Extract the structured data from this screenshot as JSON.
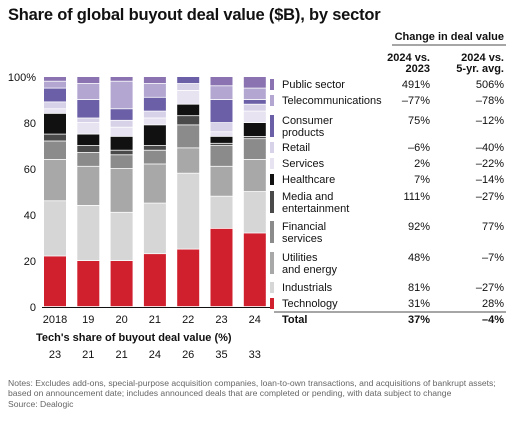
{
  "title": "Share of global buyout deal value ($B), by sector",
  "colors": {
    "Public sector": "#8a73b0",
    "Telecommunications": "#b3a7d2",
    "Consumer products": "#6b60a8",
    "Retail": "#d8d2e8",
    "Services": "#e7e3f0",
    "Healthcare": "#111111",
    "Media and entertainment": "#4a4a4a",
    "Financial services": "#8b8b8b",
    "Utilities and energy": "#a8a8a8",
    "Industrials": "#d6d6d6",
    "Technology": "#d0202e"
  },
  "chart_data": {
    "type": "bar",
    "stacked": true,
    "title": "Share of global buyout deal value ($B), by sector",
    "categories": [
      "2018",
      "19",
      "20",
      "21",
      "22",
      "23",
      "24"
    ],
    "ylim": [
      0,
      100
    ],
    "yticks": [
      "0",
      "20",
      "40",
      "60",
      "80",
      "100%"
    ],
    "grid": false,
    "series": [
      {
        "name": "Technology",
        "values": [
          22,
          20,
          20,
          23,
          25,
          34,
          32
        ]
      },
      {
        "name": "Industrials",
        "values": [
          24,
          24,
          21,
          22,
          33,
          14,
          18
        ]
      },
      {
        "name": "Utilities and energy",
        "values": [
          18,
          17,
          19,
          17,
          11,
          13,
          14
        ]
      },
      {
        "name": "Financial services",
        "values": [
          8,
          6,
          6,
          6,
          10,
          9,
          9
        ]
      },
      {
        "name": "Media and entertainment",
        "values": [
          3,
          3,
          2,
          2,
          4,
          1,
          1
        ]
      },
      {
        "name": "Healthcare",
        "values": [
          9,
          5,
          6,
          9,
          5,
          3,
          6
        ]
      },
      {
        "name": "Services",
        "values": [
          2,
          5,
          4,
          3,
          6,
          2,
          5
        ]
      },
      {
        "name": "Retail",
        "values": [
          3,
          2,
          3,
          3,
          3,
          4,
          3
        ]
      },
      {
        "name": "Consumer products",
        "values": [
          6,
          8,
          5,
          6,
          3,
          10,
          2
        ]
      },
      {
        "name": "Telecommunications",
        "values": [
          3,
          7,
          12,
          6,
          0,
          6,
          5
        ]
      },
      {
        "name": "Public sector",
        "values": [
          2,
          3,
          2,
          3,
          0,
          4,
          5
        ]
      }
    ]
  },
  "legend": {
    "header": "Change in deal value",
    "col1_header": [
      "2024 vs.",
      "2023"
    ],
    "col2_header": [
      "2024 vs.",
      "5-yr. avg."
    ],
    "rows": [
      {
        "label": [
          "Public sector"
        ],
        "v1": "491%",
        "v2": "506%",
        "key": "Public sector"
      },
      {
        "label": [
          "Telecommunications"
        ],
        "v1": "–77%",
        "v2": "–78%",
        "key": "Telecommunications"
      },
      {
        "label": [
          "Consumer",
          "products"
        ],
        "v1": "75%",
        "v2": "–12%",
        "key": "Consumer products"
      },
      {
        "label": [
          "Retail"
        ],
        "v1": "–6%",
        "v2": "–40%",
        "key": "Retail"
      },
      {
        "label": [
          "Services"
        ],
        "v1": "2%",
        "v2": "–22%",
        "key": "Services"
      },
      {
        "label": [
          "Healthcare"
        ],
        "v1": "7%",
        "v2": "–14%",
        "key": "Healthcare"
      },
      {
        "label": [
          "Media and",
          "entertainment"
        ],
        "v1": "111%",
        "v2": "–27%",
        "key": "Media and entertainment"
      },
      {
        "label": [
          "Financial",
          "services"
        ],
        "v1": "92%",
        "v2": "77%",
        "key": "Financial services"
      },
      {
        "label": [
          "Utilities",
          "and energy"
        ],
        "v1": "48%",
        "v2": "–7%",
        "key": "Utilities and energy"
      },
      {
        "label": [
          "Industrials"
        ],
        "v1": "81%",
        "v2": "–27%",
        "key": "Industrials"
      },
      {
        "label": [
          "Technology"
        ],
        "v1": "31%",
        "v2": "28%",
        "key": "Technology"
      }
    ],
    "total": {
      "label": "Total",
      "v1": "37%",
      "v2": "–4%"
    }
  },
  "tech_share": {
    "title": "Tech's share of buyout deal value (%)",
    "values": [
      "23",
      "21",
      "21",
      "24",
      "26",
      "35",
      "33"
    ]
  },
  "notes": "Notes: Excludes add-ons, special-purpose acquisition companies, loan-to-own transactions, and acquisitions of bankrupt assets; based on announcement date; includes announced deals that are completed or pending, with data subject to change",
  "source": "Source: Dealogic"
}
